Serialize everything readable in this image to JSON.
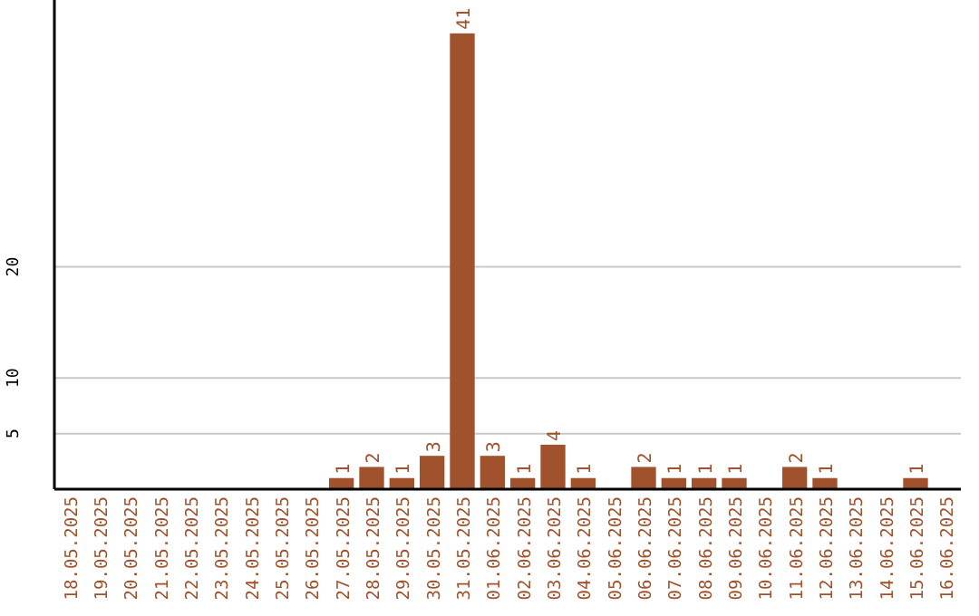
{
  "chart_data": {
    "type": "bar",
    "categories": [
      "18.05.2025",
      "19.05.2025",
      "20.05.2025",
      "21.05.2025",
      "22.05.2025",
      "23.05.2025",
      "24.05.2025",
      "25.05.2025",
      "26.05.2025",
      "27.05.2025",
      "28.05.2025",
      "29.05.2025",
      "30.05.2025",
      "31.05.2025",
      "01.06.2025",
      "02.06.2025",
      "03.06.2025",
      "04.06.2025",
      "05.06.2025",
      "06.06.2025",
      "07.06.2025",
      "08.06.2025",
      "09.06.2025",
      "10.06.2025",
      "11.06.2025",
      "12.06.2025",
      "13.06.2025",
      "14.06.2025",
      "15.06.2025",
      "16.06.2025"
    ],
    "values": [
      null,
      null,
      null,
      null,
      null,
      null,
      null,
      null,
      null,
      1,
      2,
      1,
      3,
      41,
      3,
      1,
      4,
      1,
      null,
      2,
      1,
      1,
      1,
      null,
      2,
      1,
      null,
      null,
      1,
      null
    ],
    "color": "#a0522d",
    "ylim": [
      0,
      44
    ],
    "yticks": [
      5,
      10,
      20
    ],
    "grid": "y",
    "data_labels": true
  }
}
